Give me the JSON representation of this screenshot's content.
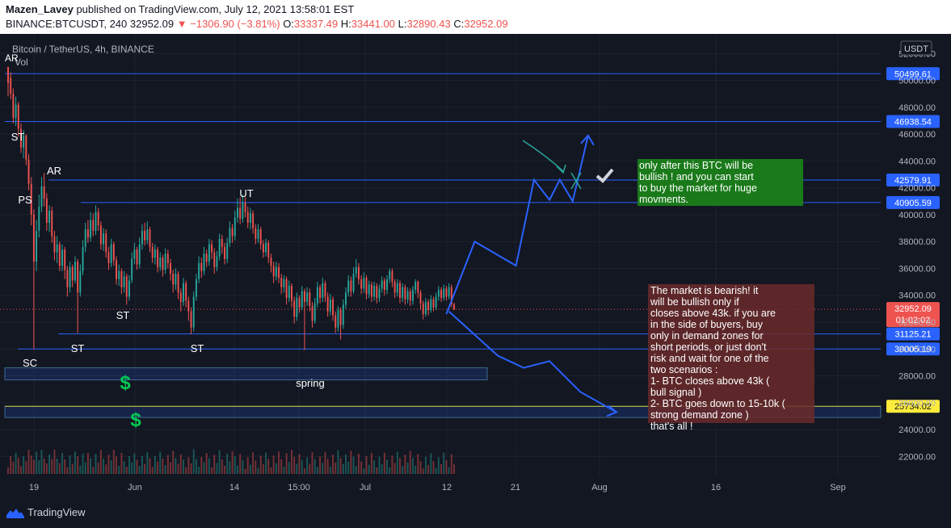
{
  "header": {
    "author": "Mazen_Lavey",
    "published_text": "published on TradingView.com, July 12, 2021 13:58:01 EST",
    "symbol": "BINANCE:BTCUSDT, 240",
    "last": "32952.09",
    "change": "−1306.90 (−3.81%)",
    "o_label": "O:",
    "o_value": "33337.49",
    "h_label": "H:",
    "h_value": "33441.00",
    "l_label": "L:",
    "l_value": "32890.43",
    "c_label": "C:",
    "c_value": "32952.09"
  },
  "legend": {
    "title": "Bitcoin / TetherUS, 4h, BINANCE",
    "vol": "Vol",
    "ar_top": "AR"
  },
  "currency_badge": "USDT",
  "footer": {
    "brand": "TradingView"
  },
  "chart_data": {
    "type": "candlestick",
    "y_axis": {
      "min": 21000,
      "max": 52800,
      "ticks": [
        22000,
        24000,
        26000,
        28000,
        30000,
        32000,
        34000,
        36000,
        38000,
        40000,
        42000,
        44000,
        46000,
        48000,
        50000,
        52000
      ]
    },
    "x_axis": {
      "ticks": [
        "19",
        "Jun",
        "14",
        "15:00",
        "Jul",
        "12",
        "21",
        "Aug",
        "16",
        "Sep"
      ]
    },
    "current_price": {
      "value": 32952.09,
      "label": "32952.09",
      "countdown": "01:02:02"
    },
    "horizontal_levels": [
      {
        "value": 50499.61,
        "label": "50499.61",
        "color": "#2962ff"
      },
      {
        "value": 46938.54,
        "label": "46938.54",
        "color": "#2962ff"
      },
      {
        "value": 42579.91,
        "label": "42579.91",
        "color": "#2962ff"
      },
      {
        "value": 40905.59,
        "label": "40905.59",
        "color": "#2962ff"
      },
      {
        "value": 31125.21,
        "label": "31125.21",
        "color": "#2962ff"
      },
      {
        "value": 30005.19,
        "label": "30005.19",
        "color": "#2962ff"
      },
      {
        "value": 25734.02,
        "label": "25734.02",
        "color": "#c8c832"
      }
    ],
    "wyckoff_labels": [
      {
        "text": "ST",
        "date_index": 2,
        "price": 45900
      },
      {
        "text": "PS",
        "date_index": 6,
        "price": 41200
      },
      {
        "text": "AR",
        "date_index": 14,
        "price": 43500
      },
      {
        "text": "SC",
        "date_index": 10,
        "price": 29100
      },
      {
        "text": "ST",
        "date_index": 27,
        "price": 30900
      },
      {
        "text": "ST",
        "date_index": 46,
        "price": 32900
      },
      {
        "text": "ST",
        "date_index": 72,
        "price": 30900
      },
      {
        "text": "UT",
        "date_index": 92,
        "price": 42300
      },
      {
        "text": "spring",
        "date_index": 117,
        "price": 27700
      }
    ],
    "demand_zones": [
      {
        "from_index": 0,
        "to_index": 185,
        "top": 28600,
        "bottom": 27700
      },
      {
        "from_index": 0,
        "to_index": 999,
        "top": 25734,
        "bottom": 24900
      },
      {
        "from_index": 196,
        "to_index": 227,
        "top": 42400,
        "bottom": 40950
      }
    ],
    "scenario_paths": {
      "bullish": [
        [
          170,
          32600
        ],
        [
          181,
          38000
        ],
        [
          197,
          36200
        ],
        [
          204,
          42600
        ],
        [
          210,
          41100
        ],
        [
          214,
          42600
        ],
        [
          219,
          41000
        ],
        [
          225,
          45900
        ]
      ],
      "bearish": [
        [
          171,
          32800
        ],
        [
          190,
          29500
        ],
        [
          200,
          28600
        ],
        [
          210,
          29100
        ],
        [
          222,
          26800
        ],
        [
          236,
          25300
        ]
      ]
    },
    "notes": [
      {
        "text": "only after this BTC will be bullish ! and you can start to buy the market for huge movments.",
        "color": "#1a7a1a"
      },
      {
        "text": "The market is bearish! it will be bullish only if closes above 43k. if you are in the side of buyers, buy only in demand zones for short periods, or just don't risk and wait for one of the two scenarios : 1- BTC closes above 43k ( bull signal ) 2- BTC goes down to 15-10k ( strong demand zone ) that's all !",
        "color": "#6b2a2a"
      }
    ],
    "candles_4h": [
      [
        51000,
        49800,
        50200,
        48800
      ],
      [
        50200,
        49000,
        50600,
        48600
      ],
      [
        49000,
        47200,
        49400,
        46800
      ],
      [
        47200,
        48200,
        48800,
        46600
      ],
      [
        48200,
        46400,
        48400,
        45800
      ],
      [
        46400,
        45000,
        46800,
        44600
      ],
      [
        45000,
        45900,
        46300,
        44200
      ],
      [
        45900,
        44100,
        46000,
        43700
      ],
      [
        44100,
        42300,
        44500,
        41800
      ],
      [
        42300,
        40000,
        42800,
        39200
      ],
      [
        40000,
        36500,
        40400,
        30000
      ],
      [
        36500,
        38800,
        39600,
        35800
      ],
      [
        38800,
        40600,
        41500,
        38300
      ],
      [
        40600,
        42100,
        42800,
        40200
      ],
      [
        42100,
        41200,
        43100,
        40600
      ],
      [
        41200,
        39400,
        41600,
        38800
      ],
      [
        39400,
        40300,
        40700,
        38700
      ],
      [
        40300,
        38400,
        40600,
        37900
      ],
      [
        38400,
        37200,
        38800,
        36600
      ],
      [
        37200,
        37800,
        38400,
        36400
      ],
      [
        37800,
        36200,
        38000,
        35800
      ],
      [
        36200,
        37400,
        37800,
        35800
      ],
      [
        37400,
        35900,
        37600,
        35200
      ],
      [
        35900,
        34600,
        36200,
        33900
      ],
      [
        34600,
        36100,
        36500,
        34200
      ],
      [
        36100,
        35100,
        36300,
        34600
      ],
      [
        35100,
        36500,
        36900,
        34900
      ],
      [
        36500,
        34200,
        36700,
        31200
      ],
      [
        34200,
        35800,
        36300,
        33900
      ],
      [
        35800,
        37600,
        38100,
        35500
      ],
      [
        37600,
        38900,
        39400,
        37200
      ],
      [
        38900,
        38300,
        39600,
        37900
      ],
      [
        38300,
        39600,
        40200,
        38000
      ],
      [
        39600,
        38800,
        40100,
        38400
      ],
      [
        38800,
        40200,
        40700,
        38500
      ],
      [
        40200,
        39200,
        40500,
        38800
      ],
      [
        39200,
        37800,
        39500,
        37400
      ],
      [
        37800,
        38600,
        39000,
        37300
      ],
      [
        38600,
        37200,
        38900,
        36800
      ],
      [
        37200,
        36400,
        37600,
        35900
      ],
      [
        36400,
        37800,
        38200,
        36100
      ],
      [
        37800,
        36600,
        38000,
        36200
      ],
      [
        36600,
        35200,
        36900,
        34800
      ],
      [
        35200,
        35800,
        36300,
        34700
      ],
      [
        35800,
        34600,
        36000,
        34100
      ],
      [
        34600,
        35400,
        35800,
        34200
      ],
      [
        35400,
        33900,
        35600,
        33300
      ],
      [
        33900,
        35100,
        35500,
        33600
      ],
      [
        35100,
        36700,
        37200,
        34900
      ],
      [
        36700,
        37400,
        37900,
        36300
      ],
      [
        37400,
        36300,
        37600,
        35900
      ],
      [
        36300,
        37800,
        38300,
        36000
      ],
      [
        37800,
        38800,
        39300,
        37400
      ],
      [
        38800,
        38100,
        39400,
        37700
      ],
      [
        38100,
        38900,
        39500,
        37800
      ],
      [
        38900,
        37600,
        39100,
        37200
      ],
      [
        37600,
        36800,
        37900,
        36400
      ],
      [
        36800,
        37400,
        37800,
        36300
      ],
      [
        37400,
        36100,
        37600,
        35700
      ],
      [
        36100,
        36800,
        37200,
        35800
      ],
      [
        36800,
        35900,
        37000,
        35400
      ],
      [
        35900,
        37100,
        37500,
        35600
      ],
      [
        37100,
        36400,
        37400,
        36000
      ],
      [
        36400,
        35600,
        36700,
        35100
      ],
      [
        35600,
        34800,
        35900,
        34200
      ],
      [
        34800,
        35600,
        36000,
        34400
      ],
      [
        35600,
        34200,
        35800,
        33700
      ],
      [
        34200,
        33500,
        34500,
        32800
      ],
      [
        33500,
        34900,
        35300,
        33200
      ],
      [
        34900,
        33600,
        35100,
        33100
      ],
      [
        33600,
        32800,
        33900,
        32100
      ],
      [
        32800,
        31600,
        33100,
        31100
      ],
      [
        31600,
        33900,
        34300,
        31300
      ],
      [
        33900,
        35200,
        35600,
        33600
      ],
      [
        35200,
        36400,
        36900,
        34900
      ],
      [
        36400,
        35800,
        36800,
        35300
      ],
      [
        35800,
        37100,
        37600,
        35500
      ],
      [
        37100,
        36500,
        37400,
        36100
      ],
      [
        36500,
        37800,
        38200,
        36200
      ],
      [
        37800,
        37200,
        38100,
        36700
      ],
      [
        37200,
        36100,
        37500,
        35600
      ],
      [
        36100,
        36900,
        37300,
        35800
      ],
      [
        36900,
        38200,
        38600,
        36600
      ],
      [
        38200,
        37600,
        38500,
        37100
      ],
      [
        37600,
        36700,
        37900,
        36300
      ],
      [
        36700,
        37900,
        38300,
        36400
      ],
      [
        37900,
        39000,
        39500,
        37600
      ],
      [
        39000,
        38400,
        39300,
        37900
      ],
      [
        38400,
        39800,
        40300,
        38100
      ],
      [
        39800,
        40500,
        41200,
        39400
      ],
      [
        40500,
        39700,
        41300,
        39300
      ],
      [
        39700,
        40900,
        41500,
        39400
      ],
      [
        40900,
        40200,
        41300,
        39800
      ],
      [
        40200,
        39400,
        40600,
        39000
      ],
      [
        39400,
        40100,
        40500,
        38900
      ],
      [
        40100,
        39000,
        40300,
        38600
      ],
      [
        39000,
        38200,
        39300,
        37800
      ],
      [
        38200,
        38900,
        39300,
        37900
      ],
      [
        38900,
        37800,
        39100,
        37400
      ],
      [
        37800,
        37200,
        38100,
        36800
      ],
      [
        37200,
        37900,
        38200,
        36900
      ],
      [
        37900,
        36800,
        38100,
        36400
      ],
      [
        36800,
        36200,
        37100,
        35700
      ],
      [
        36200,
        35400,
        36500,
        34900
      ],
      [
        35400,
        36100,
        36500,
        35100
      ],
      [
        36100,
        35300,
        36400,
        34900
      ],
      [
        35300,
        34600,
        35600,
        34100
      ],
      [
        34600,
        35200,
        35500,
        34200
      ],
      [
        35200,
        33800,
        35400,
        33300
      ],
      [
        33800,
        34700,
        35100,
        33500
      ],
      [
        34700,
        33600,
        34900,
        33100
      ],
      [
        33600,
        32400,
        33900,
        31900
      ],
      [
        32400,
        33800,
        34200,
        32100
      ],
      [
        33800,
        33100,
        34000,
        32700
      ],
      [
        33100,
        34300,
        34700,
        32900
      ],
      [
        34300,
        33500,
        34500,
        29900
      ],
      [
        33500,
        34200,
        34600,
        33200
      ],
      [
        34200,
        33200,
        34500,
        32800
      ],
      [
        33200,
        32100,
        33500,
        31600
      ],
      [
        32100,
        33400,
        33800,
        31900
      ],
      [
        33400,
        34600,
        35000,
        33100
      ],
      [
        34600,
        33800,
        34800,
        33400
      ],
      [
        33800,
        34900,
        35300,
        33500
      ],
      [
        34900,
        33900,
        35100,
        33500
      ],
      [
        33900,
        32800,
        34200,
        32400
      ],
      [
        32800,
        33700,
        34100,
        32500
      ],
      [
        33700,
        32500,
        33900,
        32100
      ],
      [
        32500,
        31600,
        32800,
        31200
      ],
      [
        31600,
        32900,
        33200,
        31300
      ],
      [
        32900,
        31800,
        33100,
        30700
      ],
      [
        31800,
        33300,
        33700,
        31500
      ],
      [
        33300,
        34200,
        34600,
        33000
      ],
      [
        34200,
        35100,
        35500,
        33900
      ],
      [
        35100,
        34300,
        35400,
        33900
      ],
      [
        34300,
        35600,
        36100,
        34100
      ],
      [
        35600,
        36100,
        36700,
        35300
      ],
      [
        36100,
        35200,
        36400,
        34800
      ],
      [
        35200,
        34500,
        35500,
        34100
      ],
      [
        34500,
        35300,
        35700,
        34200
      ],
      [
        35300,
        34100,
        35500,
        33700
      ],
      [
        34100,
        34800,
        35100,
        33800
      ],
      [
        34800,
        33900,
        35000,
        33500
      ],
      [
        33900,
        34700,
        35000,
        33600
      ],
      [
        34700,
        33800,
        34900,
        33400
      ],
      [
        33800,
        34500,
        34800,
        33500
      ],
      [
        34500,
        35100,
        35400,
        34200
      ],
      [
        35100,
        34400,
        35300,
        34000
      ],
      [
        34400,
        35200,
        35500,
        34100
      ],
      [
        35200,
        35800,
        36000,
        34900
      ],
      [
        35800,
        35000,
        36000,
        34600
      ],
      [
        35000,
        34200,
        35200,
        33800
      ],
      [
        34200,
        34900,
        35200,
        33900
      ],
      [
        34900,
        33800,
        35100,
        33400
      ],
      [
        33800,
        34600,
        34900,
        33500
      ],
      [
        34600,
        33700,
        34800,
        33300
      ],
      [
        33700,
        34300,
        34600,
        33400
      ],
      [
        34300,
        33600,
        34500,
        33200
      ],
      [
        33600,
        34400,
        34700,
        33300
      ],
      [
        34400,
        35000,
        35200,
        34100
      ],
      [
        35000,
        34200,
        35100,
        33800
      ],
      [
        34200,
        33400,
        34400,
        32900
      ],
      [
        33400,
        32600,
        33600,
        32200
      ],
      [
        32600,
        33500,
        33800,
        32400
      ],
      [
        33500,
        32900,
        33700,
        32500
      ],
      [
        32900,
        33700,
        34000,
        32700
      ],
      [
        33700,
        33100,
        33900,
        32800
      ],
      [
        33100,
        33900,
        34200,
        32900
      ],
      [
        33900,
        34400,
        34700,
        33600
      ],
      [
        34400,
        33800,
        34600,
        33500
      ],
      [
        33800,
        34500,
        34800,
        33600
      ],
      [
        34500,
        33900,
        34700,
        33600
      ],
      [
        33900,
        34600,
        34900,
        33700
      ],
      [
        34600,
        33337,
        34800,
        33100
      ],
      [
        33337,
        32952,
        33441,
        32890
      ]
    ]
  }
}
